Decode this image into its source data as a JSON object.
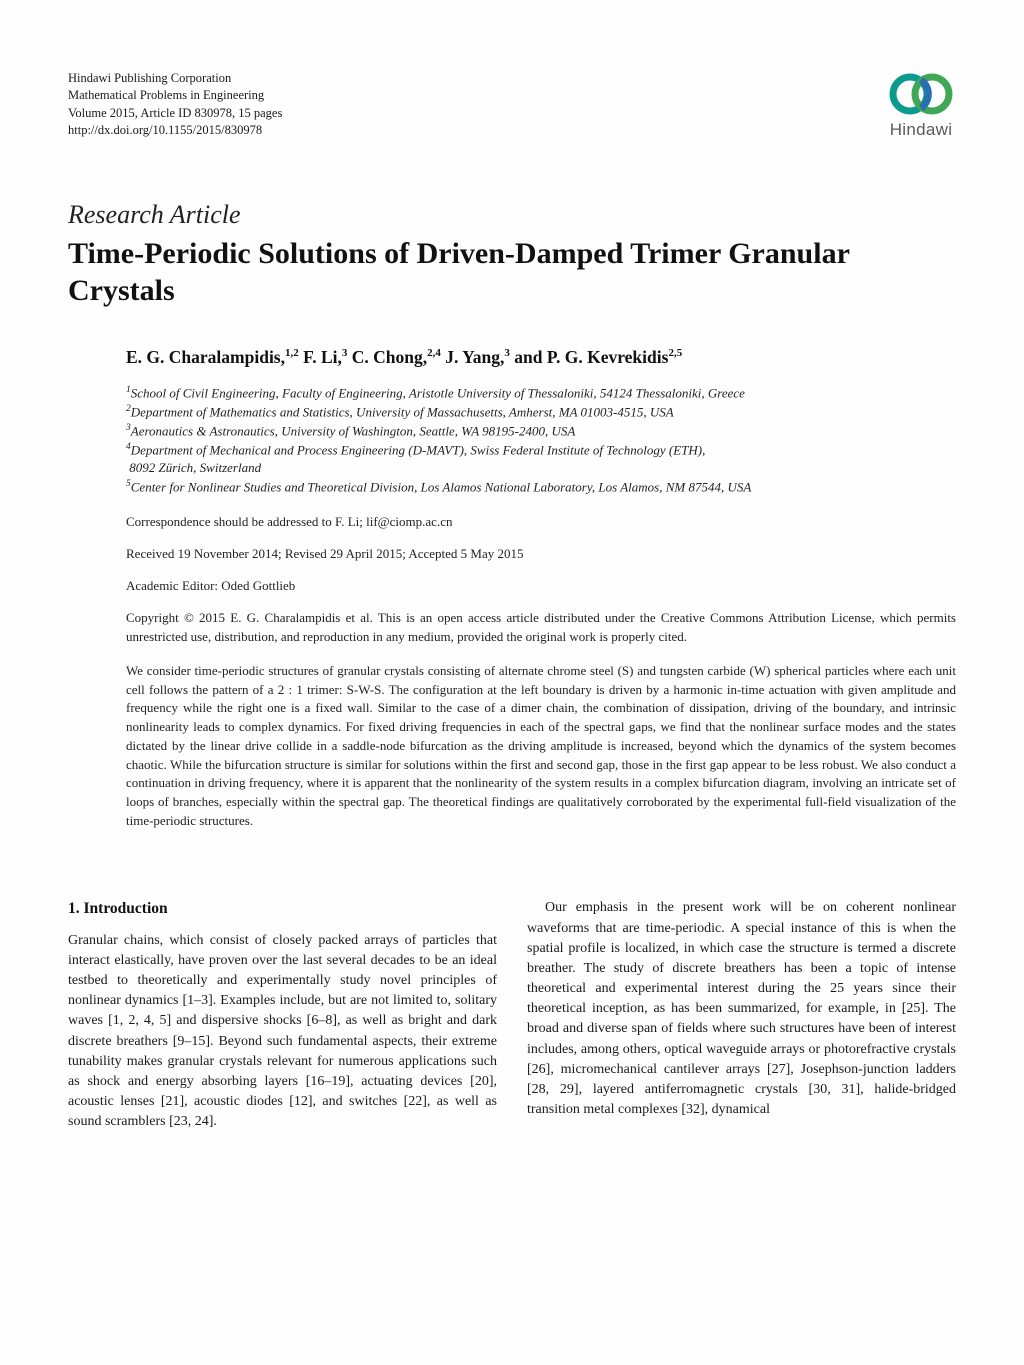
{
  "publisher": {
    "line1": "Hindawi Publishing Corporation",
    "line2": "Mathematical Problems in Engineering",
    "line3": "Volume 2015, Article ID 830978, 15 pages",
    "line4": "http://dx.doi.org/10.1155/2015/830978",
    "logo_text": "Hindawi",
    "logo_colors": {
      "ring1": "#0b9b8e",
      "ring2": "#3fa756",
      "ring3": "#2b6fb3"
    }
  },
  "article_type": "Research Article",
  "title": "Time-Periodic Solutions of Driven-Damped Trimer Granular Crystals",
  "authors_html": "E. G. Charalampidis,<sup>1,2</sup> F. Li,<sup>3</sup> C. Chong,<sup>2,4</sup> J. Yang,<sup>3</sup> and P. G. Kevrekidis<sup>2,5</sup>",
  "affiliations": [
    "<sup>1</sup>School of Civil Engineering, Faculty of Engineering, Aristotle University of Thessaloniki, 54124 Thessaloniki, Greece",
    "<sup>2</sup>Department of Mathematics and Statistics, University of Massachusetts, Amherst, MA 01003-4515, USA",
    "<sup>3</sup>Aeronautics & Astronautics, University of Washington, Seattle, WA 98195-2400, USA",
    "<sup>4</sup>Department of Mechanical and Process Engineering (D-MAVT), Swiss Federal Institute of Technology (ETH),<br>&nbsp;8092 Zürich, Switzerland",
    "<sup>5</sup>Center for Nonlinear Studies and Theoretical Division, Los Alamos National Laboratory, Los Alamos, NM 87544, USA"
  ],
  "correspondence": "Correspondence should be addressed to F. Li; lif@ciomp.ac.cn",
  "dates": "Received 19 November 2014; Revised 29 April 2015; Accepted 5 May 2015",
  "editor": "Academic Editor: Oded Gottlieb",
  "copyright": "Copyright © 2015 E. G. Charalampidis et al. This is an open access article distributed under the Creative Commons Attribution License, which permits unrestricted use, distribution, and reproduction in any medium, provided the original work is properly cited.",
  "abstract": "We consider time-periodic structures of granular crystals consisting of alternate chrome steel (S) and tungsten carbide (W) spherical particles where each unit cell follows the pattern of a 2 : 1 trimer: S-W-S. The configuration at the left boundary is driven by a harmonic in-time actuation with given amplitude and frequency while the right one is a fixed wall. Similar to the case of a dimer chain, the combination of dissipation, driving of the boundary, and intrinsic nonlinearity leads to complex dynamics. For fixed driving frequencies in each of the spectral gaps, we find that the nonlinear surface modes and the states dictated by the linear drive collide in a saddle-node bifurcation as the driving amplitude is increased, beyond which the dynamics of the system becomes chaotic. While the bifurcation structure is similar for solutions within the first and second gap, those in the first gap appear to be less robust. We also conduct a continuation in driving frequency, where it is apparent that the nonlinearity of the system results in a complex bifurcation diagram, involving an intricate set of loops of branches, especially within the spectral gap. The theoretical findings are qualitatively corroborated by the experimental full-field visualization of the time-periodic structures.",
  "section_heading": "1. Introduction",
  "col1_text": "Granular chains, which consist of closely packed arrays of particles that interact elastically, have proven over the last several decades to be an ideal testbed to theoretically and experimentally study novel principles of nonlinear dynamics [1–3]. Examples include, but are not limited to, solitary waves [1, 2, 4, 5] and dispersive shocks [6–8], as well as bright and dark discrete breathers [9–15]. Beyond such fundamental aspects, their extreme tunability makes granular crystals relevant for numerous applications such as shock and energy absorbing layers [16–19], actuating devices [20], acoustic lenses [21], acoustic diodes [12], and switches [22], as well as sound scramblers [23, 24].",
  "col2_text": "Our emphasis in the present work will be on coherent nonlinear waveforms that are time-periodic. A special instance of this is when the spatial profile is localized, in which case the structure is termed a discrete breather. The study of discrete breathers has been a topic of intense theoretical and experimental interest during the 25 years since their theoretical inception, as has been summarized, for example, in [25]. The broad and diverse span of fields where such structures have been of interest includes, among others, optical waveguide arrays or photorefractive crystals [26], micromechanical cantilever arrays [27], Josephson-junction ladders [28, 29], layered antiferromagnetic crystals [30, 31], halide-bridged transition metal complexes [32], dynamical",
  "colors": {
    "text": "#1a1a1a",
    "background": "#fefefe"
  }
}
